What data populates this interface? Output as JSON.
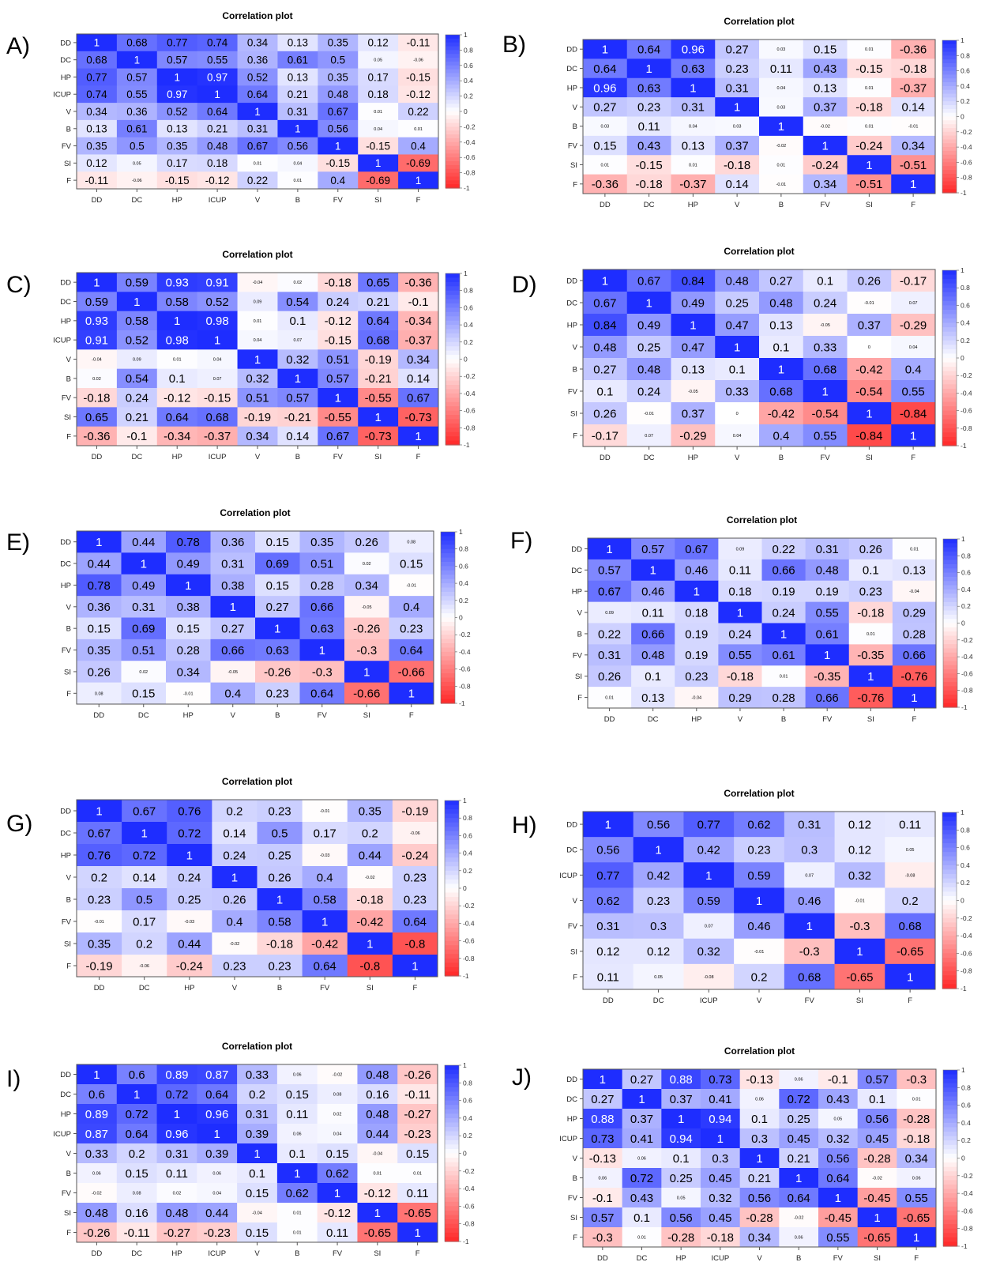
{
  "figure": {
    "panel_title": "Correlation plot",
    "legend_ticks": [
      "1",
      "0.8",
      "0.6",
      "0.4",
      "0.2",
      "0",
      "-0.2",
      "-0.4",
      "-0.6",
      "-0.8",
      "-1"
    ]
  },
  "chart_data": [
    {
      "panel": "A)",
      "title": "Correlation plot",
      "type": "heatmap",
      "labels": [
        "DD",
        "DC",
        "HP",
        "ICUP",
        "V",
        "B",
        "FV",
        "SI",
        "F"
      ],
      "matrix": [
        [
          1,
          0.68,
          0.77,
          0.74,
          0.34,
          0.13,
          0.35,
          0.12,
          -0.11
        ],
        [
          0.68,
          1,
          0.57,
          0.55,
          0.36,
          0.61,
          0.5,
          0.05,
          -0.06
        ],
        [
          0.77,
          0.57,
          1,
          0.97,
          0.52,
          0.13,
          0.35,
          0.17,
          -0.15
        ],
        [
          0.74,
          0.55,
          0.97,
          1,
          0.64,
          0.21,
          0.48,
          0.18,
          -0.12
        ],
        [
          0.34,
          0.36,
          0.52,
          0.64,
          1,
          0.31,
          0.67,
          0.01,
          0.22
        ],
        [
          0.13,
          0.61,
          0.13,
          0.21,
          0.31,
          1,
          0.56,
          0.04,
          0.01
        ],
        [
          0.35,
          0.5,
          0.35,
          0.48,
          0.67,
          0.56,
          1,
          -0.15,
          0.4
        ],
        [
          0.12,
          0.05,
          0.17,
          0.18,
          0.01,
          0.04,
          -0.15,
          1,
          -0.69
        ],
        [
          -0.11,
          -0.06,
          -0.15,
          -0.12,
          0.22,
          0.01,
          0.4,
          -0.69,
          1
        ]
      ]
    },
    {
      "panel": "B)",
      "title": "Correlation plot",
      "type": "heatmap",
      "labels": [
        "DD",
        "DC",
        "HP",
        "V",
        "B",
        "FV",
        "SI",
        "F"
      ],
      "matrix": [
        [
          1,
          0.64,
          0.96,
          0.27,
          0.03,
          0.15,
          0.01,
          -0.36
        ],
        [
          0.64,
          1,
          0.63,
          0.23,
          0.11,
          0.43,
          -0.15,
          -0.18
        ],
        [
          0.96,
          0.63,
          1,
          0.31,
          0.04,
          0.13,
          0.01,
          -0.37
        ],
        [
          0.27,
          0.23,
          0.31,
          1,
          0.03,
          0.37,
          -0.18,
          0.14
        ],
        [
          0.03,
          0.11,
          0.04,
          0.03,
          1,
          -0.02,
          0.01,
          -0.01
        ],
        [
          0.15,
          0.43,
          0.13,
          0.37,
          -0.02,
          1,
          -0.24,
          0.34
        ],
        [
          0.01,
          -0.15,
          0.01,
          -0.18,
          0.01,
          -0.24,
          1,
          -0.51
        ],
        [
          -0.36,
          -0.18,
          -0.37,
          0.14,
          -0.01,
          0.34,
          -0.51,
          1
        ]
      ]
    },
    {
      "panel": "C)",
      "title": "Correlation plot",
      "type": "heatmap",
      "labels": [
        "DD",
        "DC",
        "HP",
        "ICUP",
        "V",
        "B",
        "FV",
        "SI",
        "F"
      ],
      "matrix": [
        [
          1,
          0.59,
          0.93,
          0.91,
          -0.04,
          0.02,
          -0.18,
          0.65,
          -0.36
        ],
        [
          0.59,
          1,
          0.58,
          0.52,
          0.09,
          0.54,
          0.24,
          0.21,
          -0.1
        ],
        [
          0.93,
          0.58,
          1,
          0.98,
          0.01,
          0.1,
          -0.12,
          0.64,
          -0.34
        ],
        [
          0.91,
          0.52,
          0.98,
          1,
          0.04,
          0.07,
          -0.15,
          0.68,
          -0.37
        ],
        [
          -0.04,
          0.09,
          0.01,
          0.04,
          1,
          0.32,
          0.51,
          -0.19,
          0.34
        ],
        [
          0.02,
          0.54,
          0.1,
          0.07,
          0.32,
          1,
          0.57,
          -0.21,
          0.14
        ],
        [
          -0.18,
          0.24,
          -0.12,
          -0.15,
          0.51,
          0.57,
          1,
          -0.55,
          0.67
        ],
        [
          0.65,
          0.21,
          0.64,
          0.68,
          -0.19,
          -0.21,
          -0.55,
          1,
          -0.73
        ],
        [
          -0.36,
          -0.1,
          -0.34,
          -0.37,
          0.34,
          0.14,
          0.67,
          -0.73,
          1
        ]
      ]
    },
    {
      "panel": "D)",
      "title": "Correlation plot",
      "type": "heatmap",
      "labels": [
        "DD",
        "DC",
        "HP",
        "V",
        "B",
        "FV",
        "SI",
        "F"
      ],
      "matrix": [
        [
          1,
          0.67,
          0.84,
          0.48,
          0.27,
          0.1,
          0.26,
          -0.17
        ],
        [
          0.67,
          1,
          0.49,
          0.25,
          0.48,
          0.24,
          -0.01,
          0.07
        ],
        [
          0.84,
          0.49,
          1,
          0.47,
          0.13,
          -0.05,
          0.37,
          -0.29
        ],
        [
          0.48,
          0.25,
          0.47,
          1,
          0.1,
          0.33,
          0,
          0.04
        ],
        [
          0.27,
          0.48,
          0.13,
          0.1,
          1,
          0.68,
          -0.42,
          0.4
        ],
        [
          0.1,
          0.24,
          -0.05,
          0.33,
          0.68,
          1,
          -0.54,
          0.55
        ],
        [
          0.26,
          -0.01,
          0.37,
          0,
          -0.42,
          -0.54,
          1,
          -0.84
        ],
        [
          -0.17,
          0.07,
          -0.29,
          0.04,
          0.4,
          0.55,
          -0.84,
          1
        ]
      ]
    },
    {
      "panel": "E)",
      "title": "Correlation plot",
      "type": "heatmap",
      "labels": [
        "DD",
        "DC",
        "HP",
        "V",
        "B",
        "FV",
        "SI",
        "F"
      ],
      "matrix": [
        [
          1,
          0.44,
          0.78,
          0.36,
          0.15,
          0.35,
          0.26,
          0.08
        ],
        [
          0.44,
          1,
          0.49,
          0.31,
          0.69,
          0.51,
          0.02,
          0.15
        ],
        [
          0.78,
          0.49,
          1,
          0.38,
          0.15,
          0.28,
          0.34,
          -0.01
        ],
        [
          0.36,
          0.31,
          0.38,
          1,
          0.27,
          0.66,
          -0.05,
          0.4
        ],
        [
          0.15,
          0.69,
          0.15,
          0.27,
          1,
          0.63,
          -0.26,
          0.23
        ],
        [
          0.35,
          0.51,
          0.28,
          0.66,
          0.63,
          1,
          -0.3,
          0.64
        ],
        [
          0.26,
          0.02,
          0.34,
          -0.05,
          -0.26,
          -0.3,
          1,
          -0.66
        ],
        [
          0.08,
          0.15,
          -0.01,
          0.4,
          0.23,
          0.64,
          -0.66,
          1
        ]
      ]
    },
    {
      "panel": "F)",
      "title": "Correlation plot",
      "type": "heatmap",
      "labels": [
        "DD",
        "DC",
        "HP",
        "V",
        "B",
        "FV",
        "SI",
        "F"
      ],
      "matrix": [
        [
          1,
          0.57,
          0.67,
          0.09,
          0.22,
          0.31,
          0.26,
          0.01
        ],
        [
          0.57,
          1,
          0.46,
          0.11,
          0.66,
          0.48,
          0.1,
          0.13
        ],
        [
          0.67,
          0.46,
          1,
          0.18,
          0.19,
          0.19,
          0.23,
          -0.04
        ],
        [
          0.09,
          0.11,
          0.18,
          1,
          0.24,
          0.55,
          -0.18,
          0.29
        ],
        [
          0.22,
          0.66,
          0.19,
          0.24,
          1,
          0.61,
          0.01,
          0.28
        ],
        [
          0.31,
          0.48,
          0.19,
          0.55,
          0.61,
          1,
          -0.35,
          0.66
        ],
        [
          0.26,
          0.1,
          0.23,
          -0.18,
          0.01,
          -0.35,
          1,
          -0.76
        ],
        [
          0.01,
          0.13,
          -0.04,
          0.29,
          0.28,
          0.66,
          -0.76,
          1
        ]
      ]
    },
    {
      "panel": "G)",
      "title": "Correlation plot",
      "type": "heatmap",
      "labels": [
        "DD",
        "DC",
        "HP",
        "V",
        "B",
        "FV",
        "SI",
        "F"
      ],
      "matrix": [
        [
          1,
          0.67,
          0.76,
          0.2,
          0.23,
          -0.01,
          0.35,
          -0.19
        ],
        [
          0.67,
          1,
          0.72,
          0.14,
          0.5,
          0.17,
          0.2,
          -0.06
        ],
        [
          0.76,
          0.72,
          1,
          0.24,
          0.25,
          -0.03,
          0.44,
          -0.24
        ],
        [
          0.2,
          0.14,
          0.24,
          1,
          0.26,
          0.4,
          -0.02,
          0.23
        ],
        [
          0.23,
          0.5,
          0.25,
          0.26,
          1,
          0.58,
          -0.18,
          0.23
        ],
        [
          -0.01,
          0.17,
          -0.03,
          0.4,
          0.58,
          1,
          -0.42,
          0.64
        ],
        [
          0.35,
          0.2,
          0.44,
          -0.02,
          -0.18,
          -0.42,
          1,
          -0.8
        ],
        [
          -0.19,
          -0.06,
          -0.24,
          0.23,
          0.23,
          0.64,
          -0.8,
          1
        ]
      ]
    },
    {
      "panel": "H)",
      "title": "Correlation plot",
      "type": "heatmap",
      "labels": [
        "DD",
        "DC",
        "ICUP",
        "V",
        "FV",
        "SI",
        "F"
      ],
      "matrix": [
        [
          1,
          0.56,
          0.77,
          0.62,
          0.31,
          0.12,
          0.11
        ],
        [
          0.56,
          1,
          0.42,
          0.23,
          0.3,
          0.12,
          0.05
        ],
        [
          0.77,
          0.42,
          1,
          0.59,
          0.07,
          0.32,
          -0.08
        ],
        [
          0.62,
          0.23,
          0.59,
          1,
          0.46,
          -0.01,
          0.2
        ],
        [
          0.31,
          0.3,
          0.07,
          0.46,
          1,
          -0.3,
          0.68
        ],
        [
          0.12,
          0.12,
          0.32,
          -0.01,
          -0.3,
          1,
          -0.65
        ],
        [
          0.11,
          0.05,
          -0.08,
          0.2,
          0.68,
          -0.65,
          1
        ]
      ]
    },
    {
      "panel": "I)",
      "title": "Correlation plot",
      "type": "heatmap",
      "labels": [
        "DD",
        "DC",
        "HP",
        "ICUP",
        "V",
        "B",
        "FV",
        "SI",
        "F"
      ],
      "matrix": [
        [
          1,
          0.6,
          0.89,
          0.87,
          0.33,
          0.06,
          -0.02,
          0.48,
          -0.26
        ],
        [
          0.6,
          1,
          0.72,
          0.64,
          0.2,
          0.15,
          0.08,
          0.16,
          -0.11
        ],
        [
          0.89,
          0.72,
          1,
          0.96,
          0.31,
          0.11,
          0.02,
          0.48,
          -0.27
        ],
        [
          0.87,
          0.64,
          0.96,
          1,
          0.39,
          0.06,
          0.04,
          0.44,
          -0.23
        ],
        [
          0.33,
          0.2,
          0.31,
          0.39,
          1,
          0.1,
          0.15,
          -0.04,
          0.15
        ],
        [
          0.06,
          0.15,
          0.11,
          0.06,
          0.1,
          1,
          0.62,
          0.01,
          0.01
        ],
        [
          -0.02,
          0.08,
          0.02,
          0.04,
          0.15,
          0.62,
          1,
          -0.12,
          0.11
        ],
        [
          0.48,
          0.16,
          0.48,
          0.44,
          -0.04,
          0.01,
          -0.12,
          1,
          -0.65
        ],
        [
          -0.26,
          -0.11,
          -0.27,
          -0.23,
          0.15,
          0.01,
          0.11,
          -0.65,
          1
        ]
      ]
    },
    {
      "panel": "J)",
      "title": "Correlation plot",
      "type": "heatmap",
      "labels": [
        "DD",
        "DC",
        "HP",
        "ICUP",
        "V",
        "B",
        "FV",
        "SI",
        "F"
      ],
      "matrix": [
        [
          1,
          0.27,
          0.88,
          0.73,
          -0.13,
          0.06,
          -0.1,
          0.57,
          -0.3
        ],
        [
          0.27,
          1,
          0.37,
          0.41,
          0.06,
          0.72,
          0.43,
          0.1,
          0.01
        ],
        [
          0.88,
          0.37,
          1,
          0.94,
          0.1,
          0.25,
          0.05,
          0.56,
          -0.28
        ],
        [
          0.73,
          0.41,
          0.94,
          1,
          0.3,
          0.45,
          0.32,
          0.45,
          -0.18
        ],
        [
          -0.13,
          0.06,
          0.1,
          0.3,
          1,
          0.21,
          0.56,
          -0.28,
          0.34
        ],
        [
          0.06,
          0.72,
          0.25,
          0.45,
          0.21,
          1,
          0.64,
          -0.02,
          0.06
        ],
        [
          -0.1,
          0.43,
          0.05,
          0.32,
          0.56,
          0.64,
          1,
          -0.45,
          0.55
        ],
        [
          0.57,
          0.1,
          0.56,
          0.45,
          -0.28,
          -0.02,
          -0.45,
          1,
          -0.65
        ],
        [
          -0.3,
          0.01,
          -0.28,
          -0.18,
          0.34,
          0.06,
          0.55,
          -0.65,
          1
        ]
      ]
    }
  ]
}
